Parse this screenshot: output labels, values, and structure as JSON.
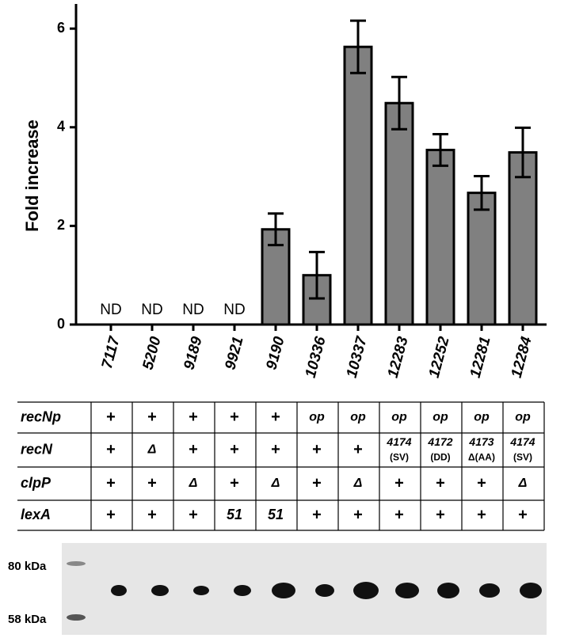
{
  "chart_data": {
    "type": "bar",
    "y_label": "Fold increase",
    "categories": [
      "7117",
      "5200",
      "9189",
      "9921",
      "9190",
      "10336",
      "10337",
      "12283",
      "12252",
      "12281",
      "12284"
    ],
    "values": [
      null,
      null,
      null,
      null,
      1.93,
      1.0,
      5.63,
      4.49,
      3.54,
      2.67,
      3.49
    ],
    "errors": [
      null,
      null,
      null,
      null,
      0.32,
      0.47,
      0.53,
      0.53,
      0.32,
      0.34,
      0.5
    ],
    "value_labels": [
      "ND",
      "ND",
      "ND",
      "ND",
      null,
      null,
      null,
      null,
      null,
      null,
      null
    ],
    "color": "#808080",
    "ylim": [
      0,
      6.5
    ],
    "yticks": [
      0,
      2,
      4,
      6
    ]
  },
  "table": {
    "rows": [
      {
        "label": "recNp",
        "cells": [
          "+",
          "+",
          "+",
          "+",
          "+",
          "op",
          "op",
          "op",
          "op",
          "op",
          "op"
        ]
      },
      {
        "label": "recN",
        "cells": [
          "+",
          "Δ",
          "+",
          "+",
          "+",
          "+",
          "+",
          [
            "4174",
            "(SV)"
          ],
          [
            "4172",
            "(DD)"
          ],
          [
            "4173",
            "Δ(AA)"
          ],
          [
            "4174",
            "(SV)"
          ]
        ]
      },
      {
        "label": "clpP",
        "cells": [
          "+",
          "+",
          "Δ",
          "+",
          "Δ",
          "+",
          "Δ",
          "+",
          "+",
          "+",
          "Δ"
        ]
      },
      {
        "label": "lexA",
        "cells": [
          "+",
          "+",
          "+",
          "51",
          "51",
          "+",
          "+",
          "+",
          "+",
          "+",
          "+"
        ]
      }
    ]
  },
  "gel": {
    "markers": [
      "80 kDa",
      "58 kDa"
    ]
  }
}
